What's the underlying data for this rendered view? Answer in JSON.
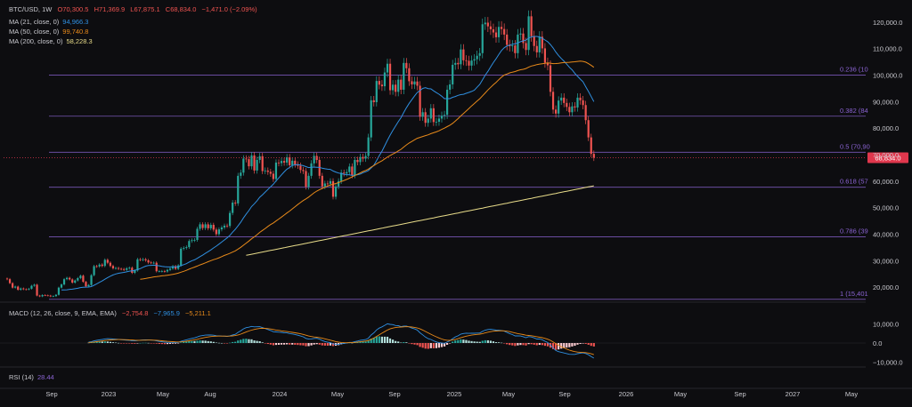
{
  "header": {
    "symbol": "BTC/USD, 1W",
    "o_label": "O",
    "o": "70,300.5",
    "h_label": "H",
    "h": "71,369.9",
    "l_label": "L",
    "l": "67,875.1",
    "c_label": "C",
    "c": "68,834.0",
    "change": "−1,471.0 (−2.09%)"
  },
  "indicators": [
    {
      "label": "MA (21, close, 0)",
      "value": "94,966.3",
      "color": "#2f8fe0"
    },
    {
      "label": "MA (50, close, 0)",
      "value": "99,740.8",
      "color": "#e88a1a"
    },
    {
      "label": "MA (200, close, 0)",
      "value": "58,228.3",
      "color": "#e8dc8a"
    }
  ],
  "macd": {
    "label": "MACD (12, 26, close, 9, EMA, EMA)",
    "hist": "−2,754.8",
    "macd": "−7,965.9",
    "signal": "−5,211.1"
  },
  "rsi": {
    "label": "RSI (14)",
    "value": "28.44"
  },
  "price_tag": "68,834.0",
  "colors": {
    "up": "#26a69a",
    "down": "#ef5350",
    "fib": "#8a63d2",
    "ma21": "#2f8fe0",
    "ma50": "#e88a1a",
    "ma200": "#e8dc8a",
    "tag": "#e0374d"
  },
  "chart_data": {
    "type": "candlestick",
    "timeframe": "1W",
    "y_axis_ticks": [
      "120,000.0",
      "110,000.0",
      "100,000.0",
      "90,000.0",
      "80,000.0",
      "70,000.0",
      "60,000.0",
      "50,000.0",
      "40,000.0",
      "30,000.0",
      "20,000.0"
    ],
    "ylim": [
      15000,
      125000
    ],
    "macd_ticks": [
      "10,000.0",
      "0.0",
      "−10,000.0"
    ],
    "x_axis_labels": [
      "Sep",
      "2023",
      "May",
      "Aug",
      "2024",
      "May",
      "Sep",
      "2025",
      "May",
      "Sep",
      "2026",
      "May",
      "Sep",
      "2027",
      "May"
    ],
    "fib_levels": [
      {
        "label": "0.236 (10",
        "value": 100000
      },
      {
        "label": "0.382 (84",
        "value": 84500
      },
      {
        "label": "0.5 (70,90",
        "value": 70900
      },
      {
        "label": "0.618 (57",
        "value": 57700
      },
      {
        "label": "0.786 (39",
        "value": 39000
      },
      {
        "label": "1 (15,401",
        "value": 15401
      }
    ],
    "close_series": {
      "start": "2022-08-01",
      "step_weeks": 1,
      "values": [
        23000,
        21500,
        19800,
        20200,
        19000,
        19500,
        19200,
        19100,
        19400,
        20500,
        20900,
        16800,
        16500,
        17000,
        16900,
        16800,
        16500,
        16600,
        17100,
        19800,
        21000,
        23000,
        23500,
        22900,
        21700,
        22500,
        23400,
        24300,
        22000,
        20300,
        20800,
        24500,
        27900,
        27800,
        28500,
        28000,
        30300,
        29200,
        28000,
        27100,
        27200,
        26900,
        26800,
        26500,
        27100,
        27300,
        25400,
        26300,
        30500,
        30300,
        30500,
        30100,
        29300,
        29200,
        29200,
        26000,
        26000,
        26000,
        25900,
        26500,
        27000,
        27900,
        26900,
        28200,
        34500,
        34800,
        35100,
        37400,
        37700,
        37800,
        42000,
        43700,
        42300,
        43700,
        42200,
        43500,
        41700,
        40000,
        41800,
        42500,
        43200,
        43100,
        48000,
        51900,
        51600,
        62000,
        63200,
        68500,
        68300,
        65600,
        69700,
        64000,
        68000,
        69400,
        63800,
        64000,
        63500,
        62800,
        60800,
        67000,
        66800,
        67600,
        67000,
        69000,
        66000,
        67700,
        66300,
        65800,
        64200,
        63800,
        57900,
        62000,
        66700,
        69500,
        68000,
        62000,
        58000,
        59100,
        59000,
        60000,
        54100,
        58000,
        60000,
        63200,
        62900,
        63400,
        65500,
        62200,
        68000,
        67200,
        69100,
        68500,
        69500,
        76500,
        90500,
        89800,
        97800,
        96400,
        95800,
        101000,
        104300,
        94300,
        96400,
        93700,
        98300,
        94500,
        104600,
        102600,
        97700,
        96500,
        97600,
        96000,
        84300,
        86000,
        82000,
        83600,
        87500,
        82300,
        82400,
        83600,
        84700,
        85000,
        94500,
        96500,
        103900,
        104600,
        104100,
        109700,
        105600,
        105400,
        103600,
        105500,
        106000,
        107300,
        108300,
        119200,
        119800,
        118400,
        117300,
        116100,
        114300,
        118200,
        117400,
        115300,
        111400,
        110900,
        111200,
        108300,
        115300,
        115700,
        112100,
        109500,
        122200,
        114700,
        111000,
        108600,
        114500,
        110100,
        104700,
        103700,
        93700,
        87000,
        85500,
        90400,
        91500,
        89500,
        88000,
        86000,
        88200,
        87800,
        91500,
        90500,
        88700,
        83000,
        76500,
        70300,
        68834
      ]
    },
    "macd_series": {
      "note": "weekly MACD histogram values (approx)",
      "hist_last": -2754.8,
      "macd_last": -7965.9,
      "signal_last": -5211.1
    }
  }
}
